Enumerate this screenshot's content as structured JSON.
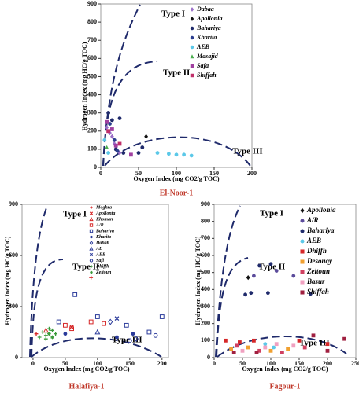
{
  "chart_data": [
    {
      "type": "scatter",
      "title": "El-Noor-1",
      "x_label": "Oxygen Index (mg CO2/g TOC)",
      "y_label": "Hydrogen Index (mg HC/g TOC)",
      "annotations": [
        "Type I",
        "Type II",
        "Type III"
      ],
      "xlim": [
        0,
        200
      ],
      "xticks": [
        0,
        50,
        100,
        150,
        200
      ],
      "ylim": [
        0,
        900
      ],
      "yticks": [
        0,
        100,
        200,
        300,
        400,
        500,
        600,
        700,
        800,
        900
      ],
      "series": [
        {
          "name": "Dabaa",
          "color": "#9b6fc8",
          "marker": "diamond",
          "x": [
            8,
            12,
            15,
            18,
            25
          ],
          "values": [
            220,
            190,
            170,
            130,
            80
          ]
        },
        {
          "name": "Apollonia",
          "color": "#111111",
          "marker": "diamond",
          "x": [
            60
          ],
          "values": [
            170
          ]
        },
        {
          "name": "Bahariya",
          "color": "#1f2a6b",
          "marker": "circle",
          "x": [
            10,
            15,
            25,
            20,
            30,
            55,
            50
          ],
          "values": [
            300,
            260,
            270,
            100,
            80,
            110,
            80
          ]
        },
        {
          "name": "Kharita",
          "color": "#2c3e8f",
          "marker": "circle",
          "x": [
            12,
            18,
            22
          ],
          "values": [
            240,
            150,
            90
          ]
        },
        {
          "name": "AEB",
          "color": "#5bc8e8",
          "marker": "circle",
          "x": [
            5,
            10,
            75,
            90,
            100,
            110,
            120
          ],
          "values": [
            150,
            80,
            80,
            75,
            70,
            70,
            65
          ]
        },
        {
          "name": "Masajid",
          "color": "#4caf50",
          "marker": "triangle",
          "x": [
            8
          ],
          "values": [
            110
          ]
        },
        {
          "name": "Safa",
          "color": "#a040a0",
          "marker": "square",
          "x": [
            8,
            15,
            20,
            40
          ],
          "values": [
            250,
            210,
            120,
            70
          ]
        },
        {
          "name": "Shiffah",
          "color": "#c0306a",
          "marker": "square",
          "x": [
            10,
            25
          ],
          "values": [
            200,
            130
          ]
        }
      ]
    },
    {
      "type": "scatter",
      "title": "Halafiya-1",
      "x_label": "Oxygen Index (mg CO2/g TOC)",
      "y_label": "Hydrogen Index (mg HC/g TOC)",
      "annotations": [
        "Type I",
        "Type II",
        "Type III"
      ],
      "xlim": [
        -17,
        210
      ],
      "xticks": [
        0,
        50,
        100,
        150,
        200
      ],
      "ylim": [
        0,
        900
      ],
      "yticks": [
        0,
        300,
        600,
        900
      ],
      "series": [
        {
          "name": "Moghra",
          "color": "#d62728",
          "marker": "plus",
          "x": [
            90,
            5
          ],
          "values": [
            470,
            140
          ]
        },
        {
          "name": "Apollonia",
          "color": "#d62728",
          "marker": "cross",
          "x": [
            60
          ],
          "values": [
            180
          ]
        },
        {
          "name": "Khoman",
          "color": "#d62728",
          "marker": "triangle-open",
          "x": [
            20
          ],
          "values": [
            160
          ]
        },
        {
          "name": "A/R",
          "color": "#d62728",
          "marker": "square-open",
          "x": [
            50,
            60,
            90,
            110
          ],
          "values": [
            190,
            170,
            210,
            200
          ]
        },
        {
          "name": "Bahariya",
          "color": "#2a3a9a",
          "marker": "square-open",
          "x": [
            65,
            40,
            100,
            145,
            180,
            200
          ],
          "values": [
            370,
            210,
            240,
            190,
            150,
            240
          ]
        },
        {
          "name": "Kharita",
          "color": "#2a3a9a",
          "marker": "circle",
          "x": [
            50,
            130,
            155
          ],
          "values": [
            140,
            120,
            140
          ]
        },
        {
          "name": "Dahab",
          "color": "#2a3a9a",
          "marker": "diamond-open",
          "x": [
            120,
            160
          ],
          "values": [
            210,
            110
          ]
        },
        {
          "name": "AL",
          "color": "#2a3a9a",
          "marker": "triangle-open",
          "x": [
            100
          ],
          "values": [
            150
          ]
        },
        {
          "name": "AEB",
          "color": "#2a3a9a",
          "marker": "cross",
          "x": [
            130
          ],
          "values": [
            230
          ]
        },
        {
          "name": "Safi",
          "color": "#2a3a9a",
          "marker": "circle-open",
          "x": [
            150,
            190
          ],
          "values": [
            100,
            130
          ]
        },
        {
          "name": "Dhiffh",
          "color": "#3a9a3a",
          "marker": "plus",
          "x": [
            15,
            20,
            25,
            30,
            35,
            20,
            10
          ],
          "values": [
            150,
            130,
            170,
            160,
            140,
            110,
            120
          ]
        },
        {
          "name": "Zeitoun",
          "color": "#3a9a3a",
          "marker": "star",
          "x": [
            25,
            30
          ],
          "values": [
            140,
            120
          ]
        }
      ]
    },
    {
      "type": "scatter",
      "title": "Fagour-1",
      "x_label": "Oxygen Index (mg CO2/g TOC)",
      "y_label": "Hydrogen Index (mg HC/g TOC)",
      "annotations": [
        "Type I",
        "Type II",
        "Type III"
      ],
      "xlim": [
        0,
        250
      ],
      "xticks": [
        0,
        50,
        100,
        150,
        200,
        250
      ],
      "ylim": [
        0,
        900
      ],
      "yticks": [
        0,
        100,
        200,
        300,
        400,
        500,
        600,
        700,
        800,
        900
      ],
      "series": [
        {
          "name": "Apollonia",
          "color": "#111111",
          "marker": "diamond",
          "x": [
            60
          ],
          "values": [
            470
          ]
        },
        {
          "name": "A/R",
          "color": "#5b4b9b",
          "marker": "circle",
          "x": [
            70,
            110,
            140
          ],
          "values": [
            480,
            510,
            480
          ]
        },
        {
          "name": "Bahariya",
          "color": "#1f2a6b",
          "marker": "circle",
          "x": [
            55,
            65,
            95,
            170,
            80,
            100
          ],
          "values": [
            370,
            380,
            380,
            375,
            540,
            550
          ]
        },
        {
          "name": "AEB",
          "color": "#5bc8e8",
          "marker": "circle",
          "x": [
            90,
            105
          ],
          "values": [
            80,
            60
          ]
        },
        {
          "name": "Dhiffh",
          "color": "#d62728",
          "marker": "square",
          "x": [
            20,
            45,
            70,
            150,
            200
          ],
          "values": [
            100,
            90,
            100,
            100,
            80
          ]
        },
        {
          "name": "Desouqy",
          "color": "#f0a030",
          "marker": "square",
          "x": [
            30,
            60,
            100,
            130
          ],
          "values": [
            50,
            60,
            40,
            50
          ]
        },
        {
          "name": "Zeitoun",
          "color": "#d04060",
          "marker": "square",
          "x": [
            40,
            80,
            120,
            160
          ],
          "values": [
            70,
            40,
            30,
            60
          ]
        },
        {
          "name": "Basur",
          "color": "#f0a0c0",
          "marker": "square",
          "x": [
            50,
            90,
            110,
            140
          ],
          "values": [
            40,
            60,
            80,
            70
          ]
        },
        {
          "name": "Shiffah",
          "color": "#a02040",
          "marker": "square",
          "x": [
            35,
            75,
            175,
            230,
            200
          ],
          "values": [
            30,
            30,
            130,
            110,
            40
          ]
        }
      ]
    }
  ]
}
